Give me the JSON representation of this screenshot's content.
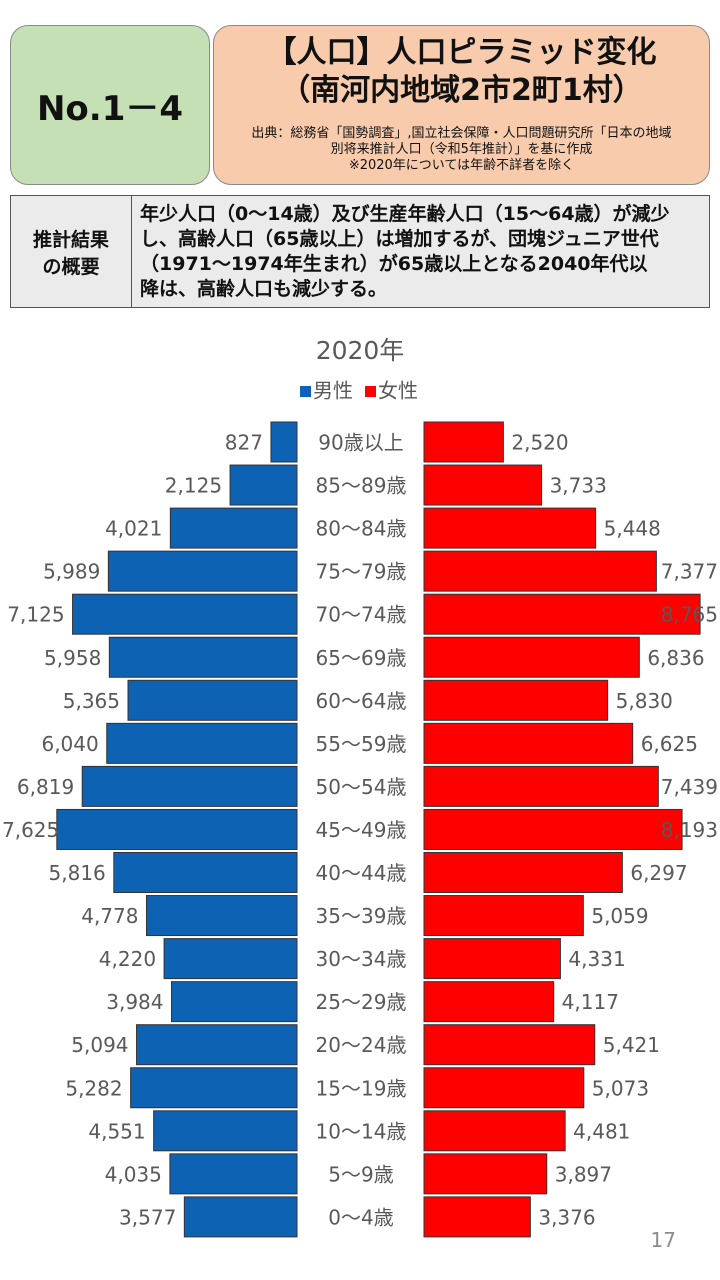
{
  "header": {
    "number": "No.1－4",
    "title_lines": [
      "【人口】人口ピラミッド変化",
      "（南河内地域2市2町1村）"
    ],
    "source_lines": [
      "出典：総務省「国勢調査」,国立社会保障・人口問題研究所「日本の地域",
      "別将来推計人口（令和5年推計）」を基に作成",
      "※2020年については年齢不詳者を除く"
    ]
  },
  "summary": {
    "label_lines": [
      "推計結果",
      "の概要"
    ],
    "text_lines": [
      "年少人口（0～14歳）及び生産年齢人口（15～64歳）が減少",
      "し、高齢人口（65歳以上）は増加するが、団塊ジュニア世代",
      "（1971～1974年生まれ）が65歳以上となる2040年代以",
      "降は、高齢人口も減少する。"
    ]
  },
  "chart_data": {
    "type": "population_pyramid",
    "title": "2020年",
    "legend": "top",
    "categories": [
      "90歳以上",
      "85～89歳",
      "80～84歳",
      "75～79歳",
      "70～74歳",
      "65～69歳",
      "60～64歳",
      "55～59歳",
      "50～54歳",
      "45～49歳",
      "40～44歳",
      "35～39歳",
      "30～34歳",
      "25～29歳",
      "20～24歳",
      "15～19歳",
      "10～14歳",
      "5～9歳",
      "0～4歳"
    ],
    "series": [
      {
        "name": "男性",
        "color": "#0e62b3",
        "values": [
          827,
          2125,
          4021,
          5989,
          7125,
          5958,
          5365,
          6040,
          6819,
          7625,
          5816,
          4778,
          4220,
          3984,
          5094,
          5282,
          4551,
          4035,
          3577
        ],
        "value_labels": [
          "827",
          "2,125",
          "4,021",
          "5,989",
          "7,125",
          "5,958",
          "5,365",
          "6,040",
          "6,819",
          "7,625",
          "5,816",
          "4,778",
          "4,220",
          "3,984",
          "5,094",
          "5,282",
          "4,551",
          "4,035",
          "3,577"
        ]
      },
      {
        "name": "女性",
        "color": "#ff0000",
        "values": [
          2520,
          3733,
          5448,
          7377,
          8765,
          6836,
          5830,
          6625,
          7439,
          8193,
          6297,
          5059,
          4331,
          4117,
          5421,
          5073,
          4481,
          3897,
          3376
        ],
        "value_labels": [
          "2,520",
          "3,733",
          "5,448",
          "7,377",
          "8,765",
          "6,836",
          "5,830",
          "6,625",
          "7,439",
          "8,193",
          "6,297",
          "5,059",
          "4,331",
          "4,117",
          "5,421",
          "5,073",
          "4,481",
          "3,897",
          "3,376"
        ]
      }
    ]
  },
  "page_number": "17"
}
